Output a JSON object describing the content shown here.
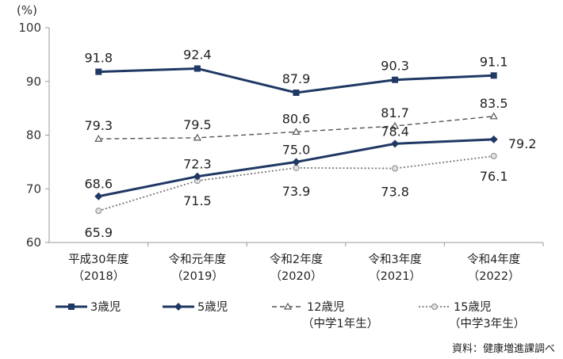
{
  "chart_data": {
    "type": "line",
    "unit_label": "(%)",
    "ylim": [
      60,
      100
    ],
    "yticks": [
      60,
      70,
      80,
      90,
      100
    ],
    "categories": [
      {
        "line1": "平成30年度",
        "line2": "（2018）"
      },
      {
        "line1": "令和元年度",
        "line2": "（2019）"
      },
      {
        "line1": "令和2年度",
        "line2": "（2020）"
      },
      {
        "line1": "令和3年度",
        "line2": "（2021）"
      },
      {
        "line1": "令和4年度",
        "line2": "（2022）"
      }
    ],
    "series": [
      {
        "key": "age3",
        "name": "3歳児",
        "name_sub": "",
        "values": [
          91.8,
          92.4,
          87.9,
          90.3,
          91.1
        ],
        "labels": [
          "91.8",
          "92.4",
          "87.9",
          "90.3",
          "91.1"
        ],
        "color": "#1f3864",
        "marker": "square",
        "dash": "solid"
      },
      {
        "key": "age5",
        "name": "5歳児",
        "name_sub": "",
        "values": [
          68.6,
          72.3,
          75.0,
          78.4,
          79.2
        ],
        "labels": [
          "68.6",
          "72.3",
          "75.0",
          "78.4",
          "79.2"
        ],
        "color": "#1f3864",
        "marker": "diamond",
        "dash": "solid"
      },
      {
        "key": "age12",
        "name": "12歳児",
        "name_sub": "（中学1年生）",
        "values": [
          79.3,
          79.5,
          80.6,
          81.7,
          83.5
        ],
        "labels": [
          "79.3",
          "79.5",
          "80.6",
          "81.7",
          "83.5"
        ],
        "color": "#555555",
        "marker": "triangle",
        "dash": "dashed"
      },
      {
        "key": "age15",
        "name": "15歳児",
        "name_sub": "（中学3年生）",
        "values": [
          65.9,
          71.5,
          73.9,
          73.8,
          76.1
        ],
        "labels": [
          "65.9",
          "71.5",
          "73.9",
          "73.8",
          "76.1"
        ],
        "color": "#777777",
        "marker": "circle",
        "dash": "dotted"
      }
    ],
    "source": "資料：健康増進課調べ"
  }
}
